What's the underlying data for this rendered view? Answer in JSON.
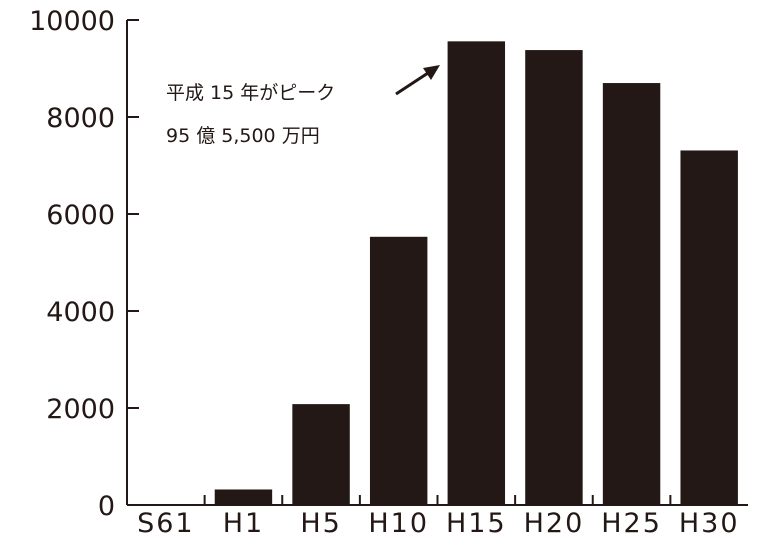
{
  "chart_data": {
    "type": "bar",
    "categories": [
      "S61",
      "H1",
      "H5",
      "H10",
      "H15",
      "H20",
      "H25",
      "H30"
    ],
    "values": [
      0,
      320,
      2080,
      5530,
      9560,
      9380,
      8700,
      7310
    ],
    "ylim": [
      0,
      10000
    ],
    "yticks": [
      "0",
      "2000",
      "4000",
      "6000",
      "8000",
      "10000"
    ],
    "grid": false,
    "bar_color": "#231815",
    "annotation": {
      "line1": "平成 15 年がピーク",
      "line2": "95 億 5,500 万円"
    }
  }
}
